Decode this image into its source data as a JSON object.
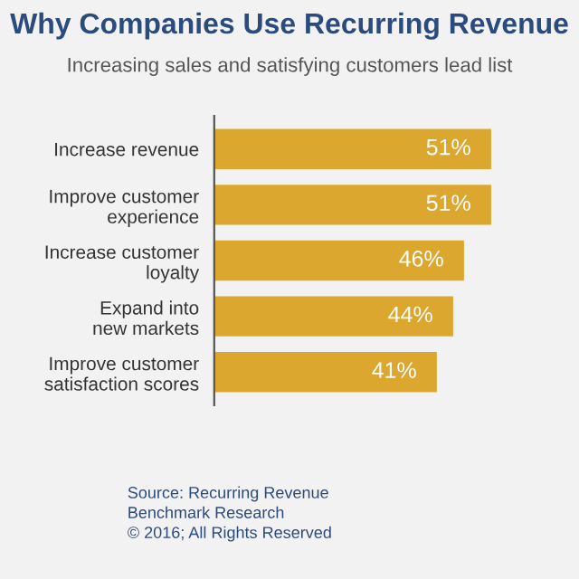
{
  "chart_data": {
    "type": "bar",
    "orientation": "horizontal",
    "title": "Why Companies Use Recurring Revenue",
    "subtitle": "Increasing sales and satisfying customers lead list",
    "categories": [
      "Increase revenue",
      "Improve customer\nexperience",
      "Increase customer\nloyalty",
      "Expand into\nnew markets",
      "Improve customer\nsatisfaction scores"
    ],
    "values": [
      51,
      51,
      46,
      44,
      41
    ],
    "value_labels": [
      "51%",
      "51%",
      "46%",
      "44%",
      "41%"
    ],
    "color": "#dba72e",
    "tick_labels": "y",
    "grid": false,
    "legend": false,
    "annotations": [
      "Source: Recurring Revenue\nBenchmark Research\n© 2016; All Rights Reserved"
    ]
  }
}
